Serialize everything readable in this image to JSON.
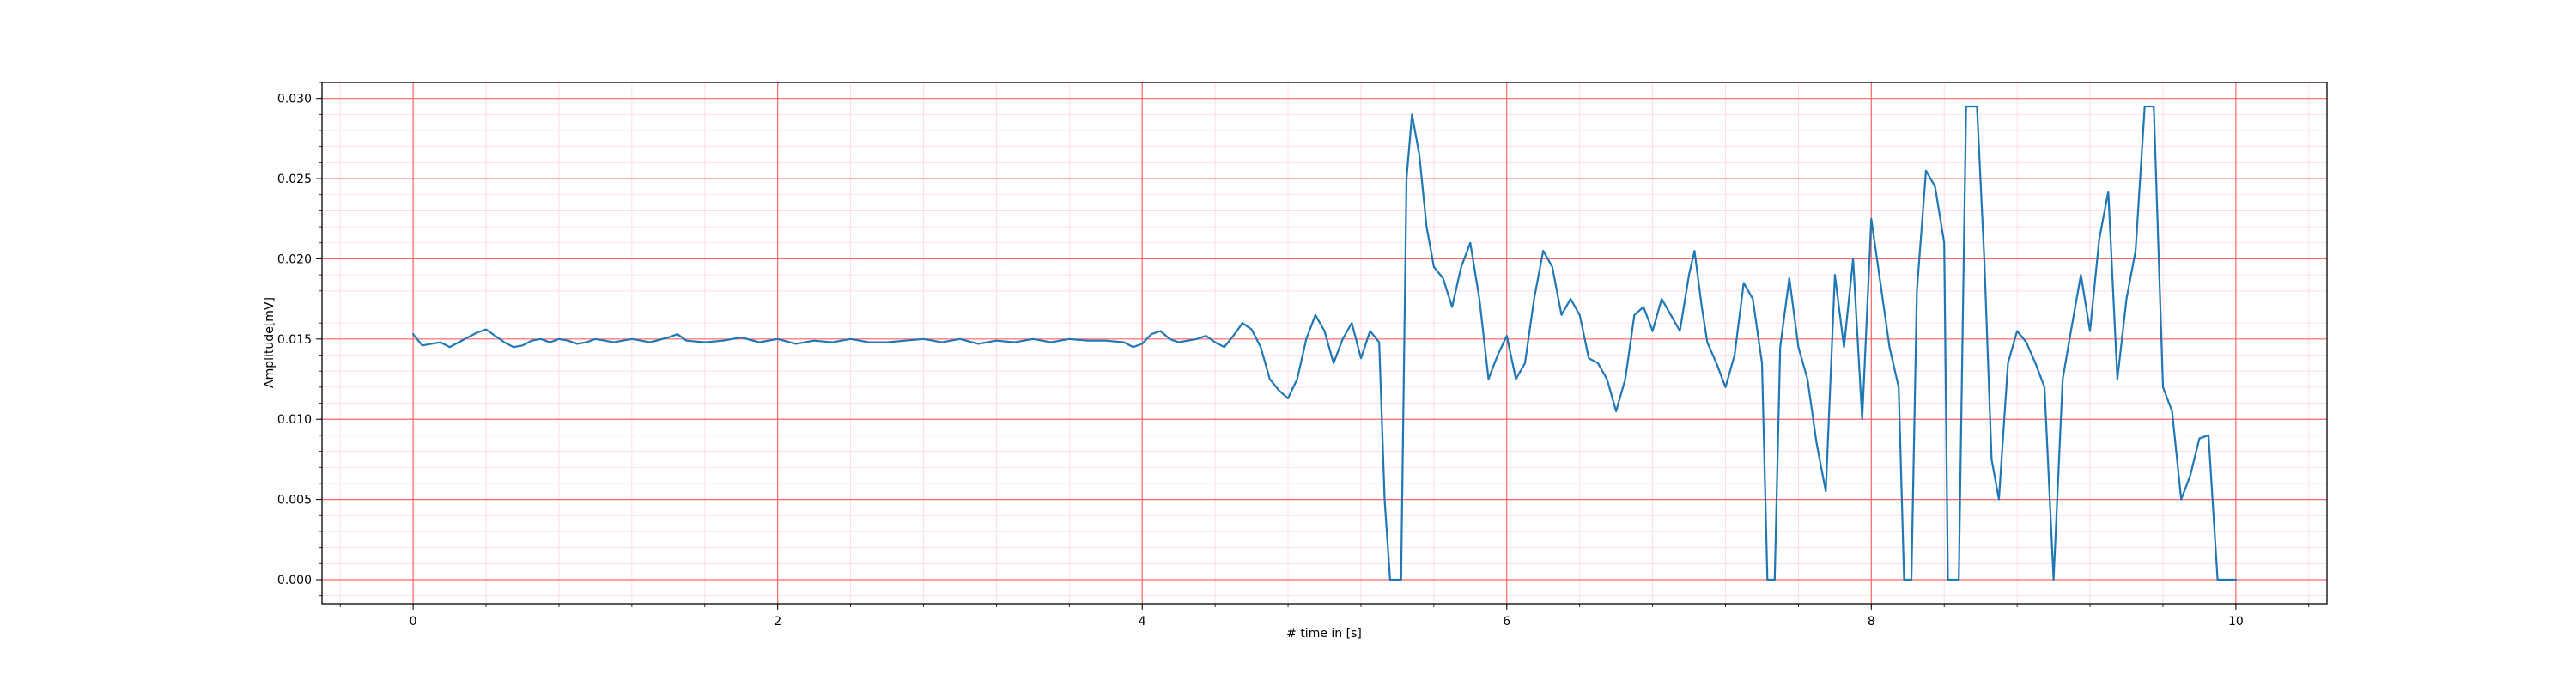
{
  "chart_data": {
    "type": "line",
    "xlabel": "# time in [s]",
    "ylabel": "Amplitude[mV]",
    "xlim": [
      -0.5,
      10.5
    ],
    "ylim": [
      -0.0015,
      0.031
    ],
    "x_ticks": [
      0,
      2,
      4,
      6,
      8,
      10
    ],
    "x_tick_labels": [
      "0",
      "2",
      "4",
      "6",
      "8",
      "10"
    ],
    "y_ticks": [
      0.0,
      0.005,
      0.01,
      0.015,
      0.02,
      0.025,
      0.03
    ],
    "y_tick_labels": [
      "0.000",
      "0.005",
      "0.010",
      "0.015",
      "0.020",
      "0.025",
      "0.030"
    ],
    "grid": {
      "major": true,
      "minor": true,
      "major_color": "#ff6666",
      "minor_color": "#ffd6e6"
    },
    "colors": {
      "line": "#1f77b4"
    },
    "series": [
      {
        "points": [
          [
            0.0,
            0.0153
          ],
          [
            0.05,
            0.0146
          ],
          [
            0.1,
            0.0147
          ],
          [
            0.15,
            0.0148
          ],
          [
            0.2,
            0.0145
          ],
          [
            0.25,
            0.0148
          ],
          [
            0.3,
            0.0151
          ],
          [
            0.35,
            0.0154
          ],
          [
            0.4,
            0.0156
          ],
          [
            0.45,
            0.0152
          ],
          [
            0.5,
            0.0148
          ],
          [
            0.55,
            0.0145
          ],
          [
            0.6,
            0.0146
          ],
          [
            0.65,
            0.0149
          ],
          [
            0.7,
            0.015
          ],
          [
            0.75,
            0.0148
          ],
          [
            0.8,
            0.015
          ],
          [
            0.85,
            0.0149
          ],
          [
            0.9,
            0.0147
          ],
          [
            0.95,
            0.0148
          ],
          [
            1.0,
            0.015
          ],
          [
            1.1,
            0.0148
          ],
          [
            1.2,
            0.015
          ],
          [
            1.3,
            0.0148
          ],
          [
            1.4,
            0.0151
          ],
          [
            1.45,
            0.0153
          ],
          [
            1.5,
            0.0149
          ],
          [
            1.6,
            0.0148
          ],
          [
            1.7,
            0.0149
          ],
          [
            1.8,
            0.0151
          ],
          [
            1.9,
            0.0148
          ],
          [
            2.0,
            0.015
          ],
          [
            2.1,
            0.0147
          ],
          [
            2.2,
            0.0149
          ],
          [
            2.3,
            0.0148
          ],
          [
            2.4,
            0.015
          ],
          [
            2.5,
            0.0148
          ],
          [
            2.6,
            0.0148
          ],
          [
            2.7,
            0.0149
          ],
          [
            2.8,
            0.015
          ],
          [
            2.9,
            0.0148
          ],
          [
            3.0,
            0.015
          ],
          [
            3.1,
            0.0147
          ],
          [
            3.2,
            0.0149
          ],
          [
            3.3,
            0.0148
          ],
          [
            3.4,
            0.015
          ],
          [
            3.5,
            0.0148
          ],
          [
            3.6,
            0.015
          ],
          [
            3.7,
            0.0149
          ],
          [
            3.8,
            0.0149
          ],
          [
            3.9,
            0.0148
          ],
          [
            3.95,
            0.0145
          ],
          [
            4.0,
            0.0147
          ],
          [
            4.05,
            0.0153
          ],
          [
            4.1,
            0.0155
          ],
          [
            4.15,
            0.015
          ],
          [
            4.2,
            0.0148
          ],
          [
            4.3,
            0.015
          ],
          [
            4.35,
            0.0152
          ],
          [
            4.4,
            0.0148
          ],
          [
            4.45,
            0.0145
          ],
          [
            4.5,
            0.0152
          ],
          [
            4.55,
            0.016
          ],
          [
            4.6,
            0.0156
          ],
          [
            4.65,
            0.0145
          ],
          [
            4.7,
            0.0125
          ],
          [
            4.75,
            0.0118
          ],
          [
            4.8,
            0.0113
          ],
          [
            4.85,
            0.0125
          ],
          [
            4.9,
            0.015
          ],
          [
            4.95,
            0.0165
          ],
          [
            5.0,
            0.0155
          ],
          [
            5.05,
            0.0135
          ],
          [
            5.1,
            0.015
          ],
          [
            5.15,
            0.016
          ],
          [
            5.2,
            0.0138
          ],
          [
            5.25,
            0.0155
          ],
          [
            5.3,
            0.0148
          ],
          [
            5.33,
            0.005
          ],
          [
            5.36,
            0.0
          ],
          [
            5.42,
            0.0
          ],
          [
            5.45,
            0.025
          ],
          [
            5.48,
            0.029
          ],
          [
            5.52,
            0.0265
          ],
          [
            5.56,
            0.022
          ],
          [
            5.6,
            0.0195
          ],
          [
            5.65,
            0.0188
          ],
          [
            5.7,
            0.017
          ],
          [
            5.75,
            0.0195
          ],
          [
            5.8,
            0.021
          ],
          [
            5.85,
            0.0175
          ],
          [
            5.9,
            0.0125
          ],
          [
            5.95,
            0.014
          ],
          [
            6.0,
            0.0152
          ],
          [
            6.05,
            0.0125
          ],
          [
            6.1,
            0.0135
          ],
          [
            6.15,
            0.0175
          ],
          [
            6.2,
            0.0205
          ],
          [
            6.25,
            0.0195
          ],
          [
            6.3,
            0.0165
          ],
          [
            6.35,
            0.0175
          ],
          [
            6.4,
            0.0165
          ],
          [
            6.45,
            0.0138
          ],
          [
            6.5,
            0.0135
          ],
          [
            6.55,
            0.0125
          ],
          [
            6.6,
            0.0105
          ],
          [
            6.65,
            0.0125
          ],
          [
            6.7,
            0.0165
          ],
          [
            6.75,
            0.017
          ],
          [
            6.8,
            0.0155
          ],
          [
            6.85,
            0.0175
          ],
          [
            6.9,
            0.0165
          ],
          [
            6.95,
            0.0155
          ],
          [
            7.0,
            0.019
          ],
          [
            7.03,
            0.0205
          ],
          [
            7.07,
            0.017
          ],
          [
            7.1,
            0.0148
          ],
          [
            7.15,
            0.0135
          ],
          [
            7.2,
            0.012
          ],
          [
            7.25,
            0.014
          ],
          [
            7.3,
            0.0185
          ],
          [
            7.35,
            0.0175
          ],
          [
            7.4,
            0.0135
          ],
          [
            7.43,
            0.0
          ],
          [
            7.47,
            0.0
          ],
          [
            7.5,
            0.0145
          ],
          [
            7.55,
            0.0188
          ],
          [
            7.6,
            0.0145
          ],
          [
            7.65,
            0.0125
          ],
          [
            7.7,
            0.0085
          ],
          [
            7.75,
            0.0055
          ],
          [
            7.8,
            0.019
          ],
          [
            7.85,
            0.0145
          ],
          [
            7.9,
            0.02
          ],
          [
            7.95,
            0.01
          ],
          [
            8.0,
            0.0225
          ],
          [
            8.05,
            0.0185
          ],
          [
            8.1,
            0.0145
          ],
          [
            8.15,
            0.012
          ],
          [
            8.18,
            0.0
          ],
          [
            8.22,
            0.0
          ],
          [
            8.25,
            0.018
          ],
          [
            8.3,
            0.0255
          ],
          [
            8.35,
            0.0245
          ],
          [
            8.4,
            0.021
          ],
          [
            8.42,
            0.0
          ],
          [
            8.48,
            0.0
          ],
          [
            8.52,
            0.0295
          ],
          [
            8.58,
            0.0295
          ],
          [
            8.62,
            0.02
          ],
          [
            8.66,
            0.0075
          ],
          [
            8.7,
            0.005
          ],
          [
            8.75,
            0.0135
          ],
          [
            8.8,
            0.0155
          ],
          [
            8.85,
            0.0148
          ],
          [
            8.9,
            0.0135
          ],
          [
            8.95,
            0.012
          ],
          [
            9.0,
            0.0
          ],
          [
            9.05,
            0.0125
          ],
          [
            9.1,
            0.0158
          ],
          [
            9.15,
            0.019
          ],
          [
            9.2,
            0.0155
          ],
          [
            9.25,
            0.0212
          ],
          [
            9.3,
            0.0242
          ],
          [
            9.35,
            0.0125
          ],
          [
            9.4,
            0.0175
          ],
          [
            9.45,
            0.0205
          ],
          [
            9.5,
            0.0295
          ],
          [
            9.55,
            0.0295
          ],
          [
            9.6,
            0.012
          ],
          [
            9.65,
            0.0105
          ],
          [
            9.7,
            0.005
          ],
          [
            9.75,
            0.0065
          ],
          [
            9.8,
            0.0088
          ],
          [
            9.85,
            0.009
          ],
          [
            9.9,
            0.0
          ],
          [
            9.95,
            0.0
          ],
          [
            10.0,
            0.0
          ]
        ]
      }
    ]
  }
}
